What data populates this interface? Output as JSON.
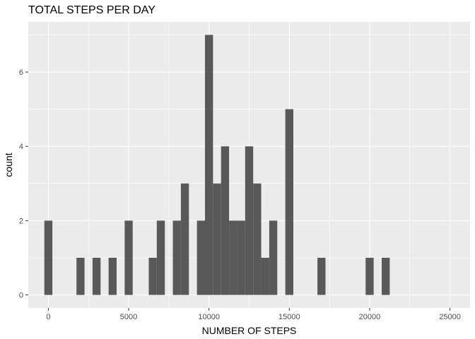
{
  "chart_data": {
    "type": "bar",
    "title": "TOTAL STEPS PER DAY",
    "xlabel": "NUMBER OF STEPS",
    "ylabel": "count",
    "xlim": [
      -1250,
      26250
    ],
    "ylim": [
      -0.35,
      7.35
    ],
    "x_ticks": [
      0,
      5000,
      10000,
      15000,
      20000,
      25000
    ],
    "x_tick_labels": [
      "0",
      "5000",
      "10000",
      "15000",
      "20000",
      "25000"
    ],
    "y_ticks": [
      0,
      2,
      4,
      6
    ],
    "y_tick_labels": [
      "0",
      "2",
      "4",
      "6"
    ],
    "bin_width": 500,
    "x": [
      0,
      500,
      1000,
      1500,
      2000,
      2500,
      3000,
      3500,
      4000,
      4500,
      5000,
      5500,
      6000,
      6500,
      7000,
      7500,
      8000,
      8500,
      9000,
      9500,
      10000,
      10500,
      11000,
      11500,
      12000,
      12500,
      13000,
      13500,
      14000,
      14500,
      15000,
      15500,
      16000,
      16500,
      17000,
      17500,
      18000,
      18500,
      19000,
      19500,
      20000,
      20500,
      21000,
      21500
    ],
    "values": [
      2,
      0,
      0,
      0,
      1,
      0,
      1,
      0,
      1,
      0,
      2,
      0,
      0,
      1,
      2,
      0,
      2,
      3,
      0,
      2,
      7,
      3,
      4,
      2,
      2,
      4,
      3,
      1,
      2,
      0,
      5,
      0,
      0,
      0,
      1,
      0,
      0,
      0,
      0,
      0,
      1,
      0,
      1,
      0
    ],
    "grid": true,
    "panel_background": "#ebebeb",
    "grid_color": "#ffffff",
    "bar_color": "#595959"
  }
}
